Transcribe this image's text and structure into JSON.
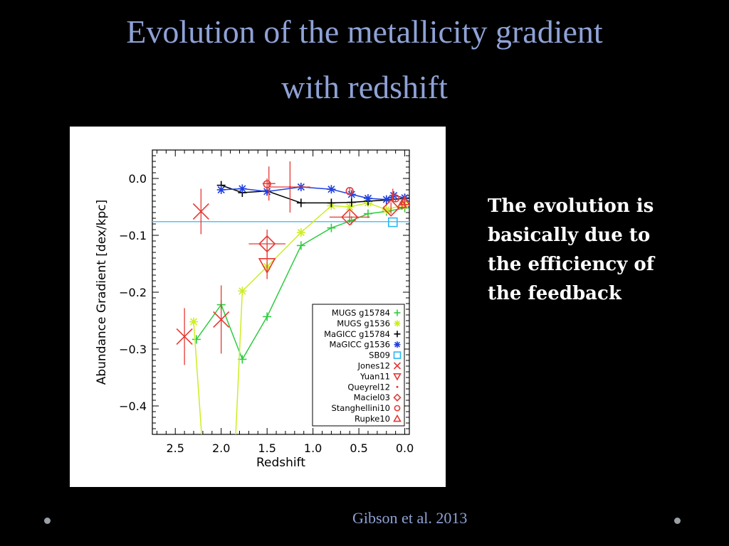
{
  "slide": {
    "title_line1": "Evolution of the metallicity gradient",
    "title_line2": "with redshift",
    "side_text": [
      "The evolution is",
      "basically due to",
      "the efficiency of",
      "the feedback"
    ],
    "citation": "Gibson et al. 2013"
  },
  "colors": {
    "background": "#000000",
    "title": "#8fa2d6",
    "side_text": "#ffffff",
    "citation": "#8fa2d6"
  },
  "chart_data": {
    "type": "scatter",
    "xlabel": "Redshift",
    "ylabel": "Abundance Gradient [dex/kpc]",
    "xlim": [
      2.75,
      -0.05
    ],
    "ylim": [
      -0.45,
      0.05
    ],
    "xticks": [
      2.5,
      2.0,
      1.5,
      1.0,
      0.5,
      0.0
    ],
    "xtick_labels": [
      "2.5",
      "2.0",
      "1.5",
      "1.0",
      "0.5",
      "0.0"
    ],
    "yticks": [
      0.0,
      -0.1,
      -0.2,
      -0.3,
      -0.4
    ],
    "ytick_labels": [
      "0.0",
      "−0.1",
      "−0.2",
      "−0.3",
      "−0.4"
    ],
    "legend_position": "bottom-right",
    "hline": {
      "y": -0.076,
      "color": "#4fc3f7"
    },
    "series": [
      {
        "name": "MUGS g15784",
        "symbol": "+",
        "color": "#2ecc40",
        "line": true,
        "points": [
          [
            2.27,
            -0.283
          ],
          [
            2.0,
            -0.222
          ],
          [
            1.77,
            -0.318
          ],
          [
            1.5,
            -0.243
          ],
          [
            1.13,
            -0.118
          ],
          [
            0.8,
            -0.087
          ],
          [
            0.58,
            -0.074
          ],
          [
            0.4,
            -0.062
          ],
          [
            0.2,
            -0.058
          ],
          [
            0.0,
            -0.052
          ]
        ]
      },
      {
        "name": "MUGS g1536",
        "symbol": "*",
        "color": "#ccee22",
        "line": true,
        "points": [
          [
            2.3,
            -0.252
          ],
          [
            2.2,
            -0.48
          ],
          [
            1.85,
            -0.48
          ],
          [
            1.77,
            -0.198
          ],
          [
            1.5,
            -0.155
          ],
          [
            1.13,
            -0.095
          ],
          [
            0.8,
            -0.048
          ],
          [
            0.6,
            -0.05
          ],
          [
            0.4,
            -0.043
          ],
          [
            0.2,
            -0.055
          ],
          [
            0.0,
            -0.046
          ]
        ]
      },
      {
        "name": "MaGICC g15784",
        "symbol": "+",
        "color": "#000000",
        "line": true,
        "points": [
          [
            2.0,
            -0.012
          ],
          [
            1.77,
            -0.025
          ],
          [
            1.5,
            -0.022
          ],
          [
            1.13,
            -0.043
          ],
          [
            0.8,
            -0.043
          ],
          [
            0.58,
            -0.042
          ],
          [
            0.4,
            -0.04
          ],
          [
            0.2,
            -0.038
          ],
          [
            0.0,
            -0.035
          ]
        ]
      },
      {
        "name": "MaGICC g1536",
        "symbol": "*",
        "color": "#1f3fe0",
        "line": true,
        "points": [
          [
            2.0,
            -0.02
          ],
          [
            1.77,
            -0.018
          ],
          [
            1.5,
            -0.023
          ],
          [
            1.13,
            -0.015
          ],
          [
            0.8,
            -0.019
          ],
          [
            0.58,
            -0.028
          ],
          [
            0.4,
            -0.035
          ],
          [
            0.2,
            -0.037
          ],
          [
            0.12,
            -0.03
          ],
          [
            0.0,
            -0.034
          ]
        ]
      },
      {
        "name": "SB09",
        "symbol": "square",
        "color": "#29b6f6",
        "line": false,
        "points": [
          [
            0.13,
            -0.077
          ]
        ]
      },
      {
        "name": "Jones12",
        "symbol": "x",
        "color": "#e53935",
        "line": false,
        "points": [
          [
            2.22,
            -0.058,
            0.04,
            0
          ],
          [
            2.0,
            -0.248,
            0.06,
            0
          ],
          [
            2.4,
            -0.278,
            0.05,
            0
          ]
        ]
      },
      {
        "name": "Yuan11",
        "symbol": "tri-down",
        "color": "#e53935",
        "line": false,
        "points": [
          [
            1.5,
            -0.152,
            0.025,
            0
          ]
        ]
      },
      {
        "name": "Queyrel12",
        "symbol": "dot",
        "color": "#e53935",
        "line": false,
        "points": [
          [
            1.48,
            -0.009,
            0.03,
            0.07
          ],
          [
            1.25,
            -0.015,
            0.045,
            0.22
          ],
          [
            0.13,
            -0.028,
            0.01,
            0
          ]
        ]
      },
      {
        "name": "Maciel03",
        "symbol": "diamond",
        "color": "#e53935",
        "line": false,
        "points": [
          [
            1.5,
            -0.115,
            0.025,
            0.2
          ],
          [
            0.6,
            -0.068,
            0.01,
            0.22
          ],
          [
            0.15,
            -0.052,
            0.01,
            0
          ]
        ]
      },
      {
        "name": "Stanghellini10",
        "symbol": "circle",
        "color": "#e53935",
        "line": false,
        "points": [
          [
            1.5,
            -0.01,
            0.01,
            0
          ],
          [
            0.6,
            -0.022,
            0.005,
            0
          ],
          [
            0.1,
            -0.035,
            0.005,
            0
          ]
        ]
      },
      {
        "name": "Rupke10",
        "symbol": "tri-up",
        "color": "#e53935",
        "line": false,
        "points": [
          [
            0.03,
            -0.045,
            0.01,
            0
          ],
          [
            0.0,
            -0.04,
            0.01,
            0
          ]
        ]
      }
    ]
  }
}
